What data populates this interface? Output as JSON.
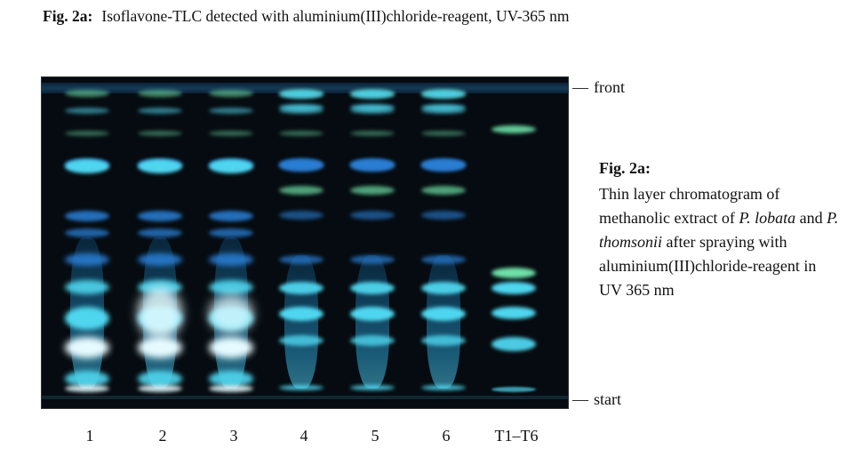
{
  "figure": {
    "label": "Fig. 2a:",
    "title": "Isoflavone-TLC detected with aluminium(III)chloride-reagent, UV-365 nm"
  },
  "markers": {
    "front": "front",
    "start": "start",
    "dash": "—"
  },
  "lanes": [
    "1",
    "2",
    "3",
    "4",
    "5",
    "6",
    "T1–T6"
  ],
  "caption": {
    "heading": "Fig. 2a:",
    "text_1": "Thin layer chromatogram of methanolic extract of ",
    "species_1": "P. lobata",
    "text_2": " and ",
    "species_2": "P. thomsonii",
    "text_3": " after spraying with aluminium(III)chloride-reagent in UV 365 nm"
  },
  "colors": {
    "plate_background": "#050b10",
    "band_cyan": "#4fd6ef",
    "band_blue": "#2a7fd6",
    "band_green": "#6fe0a8",
    "band_white": "#e6fbff"
  }
}
